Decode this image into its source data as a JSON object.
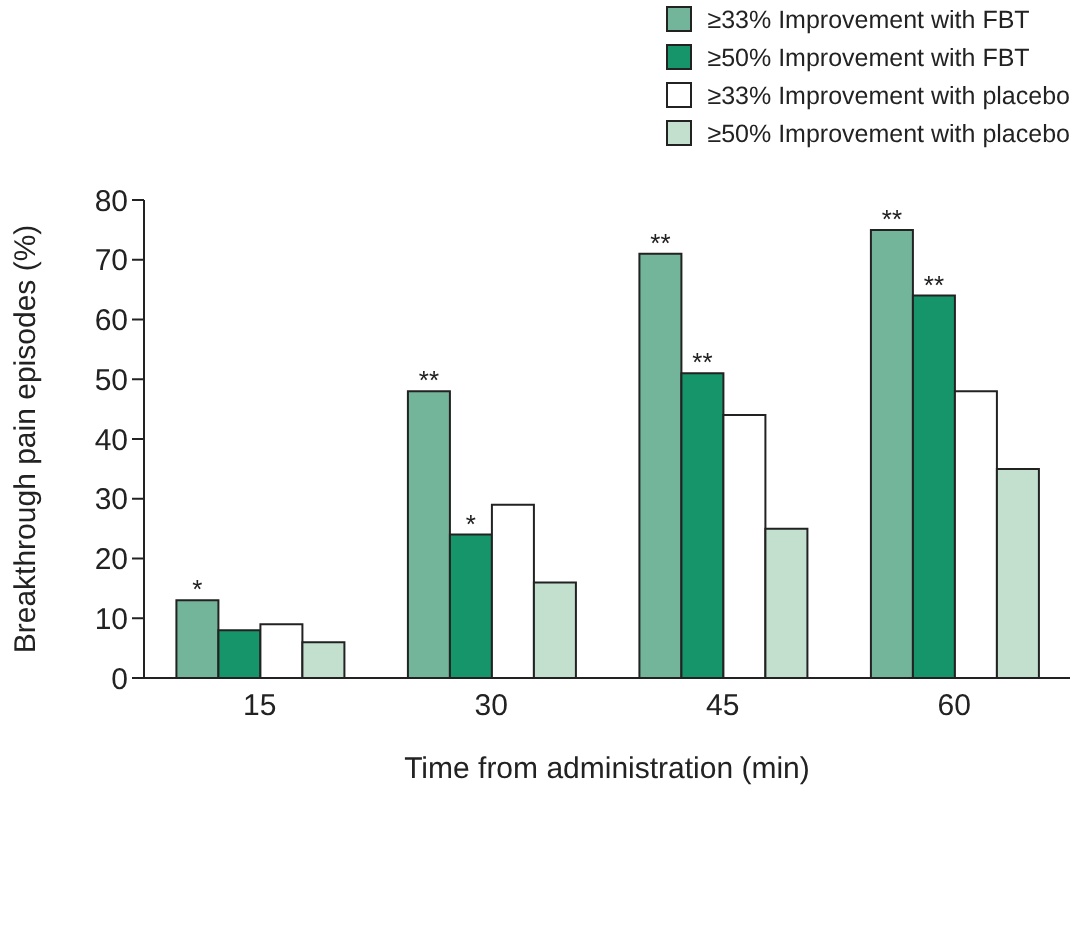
{
  "chart_data": {
    "type": "bar",
    "xlabel": "Time from administration (min)",
    "ylabel": "Breakthrough pain episodes (%)",
    "categories": [
      "15",
      "30",
      "45",
      "60"
    ],
    "series": [
      {
        "name": "≥33% Improvement with FBT",
        "color": "#72b59a",
        "values": [
          13,
          48,
          71,
          75
        ],
        "value_labels": [
          "*",
          "**",
          "**",
          "**"
        ]
      },
      {
        "name": "≥50% Improvement with FBT",
        "color": "#16956a",
        "values": [
          8,
          24,
          51,
          64
        ],
        "value_labels": [
          null,
          "*",
          "**",
          "**"
        ]
      },
      {
        "name": "≥33% Improvement with placebo",
        "color": "#ffffff",
        "values": [
          9,
          29,
          44,
          48
        ]
      },
      {
        "name": "≥50% Improvement with placebo",
        "color": "#c3e0cf",
        "values": [
          6,
          16,
          25,
          35
        ]
      }
    ],
    "ylim": [
      0,
      80
    ],
    "yticks": [
      0,
      10,
      20,
      30,
      40,
      50,
      60,
      70,
      80
    ],
    "grid": false,
    "legend": "top right"
  }
}
